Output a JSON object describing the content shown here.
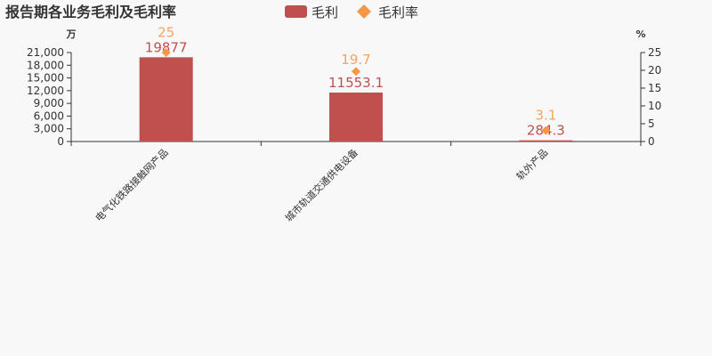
{
  "chart_data": {
    "type": "bar",
    "title": "报告期各业务毛利及毛利率",
    "categories": [
      "电气化铁路接触网产品",
      "城市轨道交通供电设备",
      "轨外产品"
    ],
    "series": [
      {
        "name": "毛利",
        "type": "bar",
        "axis": "left",
        "values": [
          19877,
          11553.1,
          284.3
        ],
        "color": "#c23531"
      },
      {
        "name": "毛利率",
        "type": "line-markers",
        "axis": "right",
        "values": [
          25,
          19.7,
          3.1
        ],
        "color": "#f4a460",
        "marker": "diamond"
      }
    ],
    "left_axis": {
      "label": "万",
      "ylim": [
        0,
        21000
      ],
      "ticks": [
        "0",
        "3,000",
        "6,000",
        "9,000",
        "12,000",
        "15,000",
        "18,000",
        "21,000"
      ]
    },
    "right_axis": {
      "label": "%",
      "ylim": [
        0,
        25
      ],
      "ticks": [
        "0",
        "5",
        "10",
        "15",
        "20",
        "25"
      ]
    },
    "legend": {
      "position": "top-center",
      "items": [
        "毛利",
        "毛利率"
      ]
    },
    "grid": false
  }
}
